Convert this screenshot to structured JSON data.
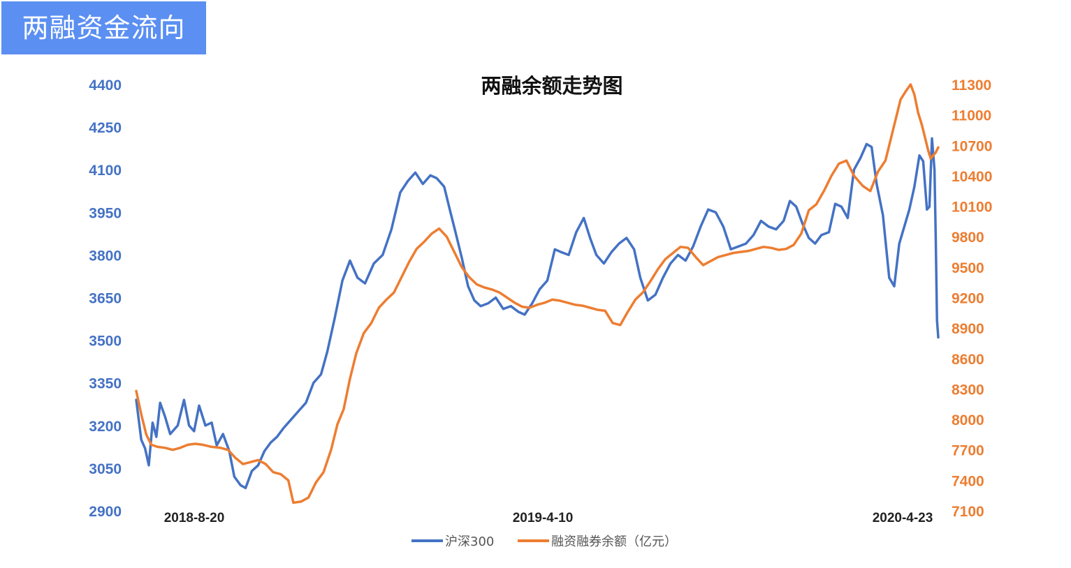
{
  "badge": {
    "text": "两融资金流向"
  },
  "chart_data": {
    "type": "line",
    "title": "两融余额走势图",
    "legend_position": "bottom",
    "grid": false,
    "x_ticks": [
      "2018-8-20",
      "2019-4-10",
      "2020-4-23"
    ],
    "y_left": {
      "ticks": [
        2900,
        3050,
        3200,
        3350,
        3500,
        3650,
        3800,
        3950,
        4100,
        4250,
        4400
      ],
      "range": [
        2900,
        4400
      ]
    },
    "y_right": {
      "ticks": [
        7100,
        7400,
        7700,
        8000,
        8300,
        8600,
        8900,
        9200,
        9500,
        9800,
        10100,
        10400,
        10700,
        11000,
        11300
      ],
      "range": [
        7100,
        11300
      ]
    },
    "x_range": [
      "2018-08-01",
      "2020-04-30"
    ],
    "series": [
      {
        "name": "沪深300",
        "axis": "left",
        "color": "#4472c4",
        "points": [
          [
            "2018-08-01",
            3290
          ],
          [
            "2018-08-05",
            3150
          ],
          [
            "2018-08-08",
            3120
          ],
          [
            "2018-08-11",
            3060
          ],
          [
            "2018-08-14",
            3210
          ],
          [
            "2018-08-17",
            3160
          ],
          [
            "2018-08-20",
            3280
          ],
          [
            "2018-08-24",
            3230
          ],
          [
            "2018-08-28",
            3170
          ],
          [
            "2018-09-03",
            3200
          ],
          [
            "2018-09-08",
            3290
          ],
          [
            "2018-09-12",
            3200
          ],
          [
            "2018-09-16",
            3180
          ],
          [
            "2018-09-20",
            3270
          ],
          [
            "2018-09-25",
            3200
          ],
          [
            "2018-09-30",
            3210
          ],
          [
            "2018-10-04",
            3130
          ],
          [
            "2018-10-09",
            3170
          ],
          [
            "2018-10-14",
            3110
          ],
          [
            "2018-10-18",
            3020
          ],
          [
            "2018-10-23",
            2990
          ],
          [
            "2018-10-27",
            2980
          ],
          [
            "2018-11-01",
            3040
          ],
          [
            "2018-11-06",
            3060
          ],
          [
            "2018-11-11",
            3110
          ],
          [
            "2018-11-16",
            3140
          ],
          [
            "2018-11-21",
            3160
          ],
          [
            "2018-11-26",
            3190
          ],
          [
            "2018-12-02",
            3220
          ],
          [
            "2018-12-08",
            3250
          ],
          [
            "2018-12-14",
            3280
          ],
          [
            "2018-12-20",
            3350
          ],
          [
            "2018-12-26",
            3380
          ],
          [
            "2018-12-31",
            3460
          ],
          [
            "2019-01-06",
            3580
          ],
          [
            "2019-01-12",
            3710
          ],
          [
            "2019-01-18",
            3780
          ],
          [
            "2019-01-24",
            3720
          ],
          [
            "2019-01-30",
            3700
          ],
          [
            "2019-02-06",
            3770
          ],
          [
            "2019-02-13",
            3800
          ],
          [
            "2019-02-20",
            3890
          ],
          [
            "2019-02-27",
            4020
          ],
          [
            "2019-03-05",
            4060
          ],
          [
            "2019-03-11",
            4090
          ],
          [
            "2019-03-17",
            4050
          ],
          [
            "2019-03-23",
            4080
          ],
          [
            "2019-03-28",
            4070
          ],
          [
            "2019-04-03",
            4040
          ],
          [
            "2019-04-08",
            3950
          ],
          [
            "2019-04-12",
            3880
          ],
          [
            "2019-04-17",
            3790
          ],
          [
            "2019-04-22",
            3690
          ],
          [
            "2019-04-27",
            3640
          ],
          [
            "2019-05-02",
            3620
          ],
          [
            "2019-05-08",
            3630
          ],
          [
            "2019-05-14",
            3650
          ],
          [
            "2019-05-20",
            3610
          ],
          [
            "2019-05-26",
            3620
          ],
          [
            "2019-06-01",
            3600
          ],
          [
            "2019-06-06",
            3590
          ],
          [
            "2019-06-12",
            3630
          ],
          [
            "2019-06-18",
            3680
          ],
          [
            "2019-06-24",
            3710
          ],
          [
            "2019-06-30",
            3820
          ],
          [
            "2019-07-05",
            3810
          ],
          [
            "2019-07-11",
            3800
          ],
          [
            "2019-07-17",
            3880
          ],
          [
            "2019-07-23",
            3930
          ],
          [
            "2019-07-28",
            3860
          ],
          [
            "2019-08-02",
            3800
          ],
          [
            "2019-08-08",
            3770
          ],
          [
            "2019-08-14",
            3810
          ],
          [
            "2019-08-20",
            3840
          ],
          [
            "2019-08-26",
            3860
          ],
          [
            "2019-09-01",
            3820
          ],
          [
            "2019-09-06",
            3720
          ],
          [
            "2019-09-12",
            3640
          ],
          [
            "2019-09-18",
            3660
          ],
          [
            "2019-09-24",
            3720
          ],
          [
            "2019-09-30",
            3770
          ],
          [
            "2019-10-06",
            3800
          ],
          [
            "2019-10-12",
            3780
          ],
          [
            "2019-10-18",
            3830
          ],
          [
            "2019-10-24",
            3900
          ],
          [
            "2019-10-30",
            3960
          ],
          [
            "2019-11-05",
            3950
          ],
          [
            "2019-11-11",
            3900
          ],
          [
            "2019-11-17",
            3820
          ],
          [
            "2019-11-23",
            3830
          ],
          [
            "2019-11-29",
            3840
          ],
          [
            "2019-12-05",
            3870
          ],
          [
            "2019-12-11",
            3920
          ],
          [
            "2019-12-17",
            3900
          ],
          [
            "2019-12-23",
            3890
          ],
          [
            "2019-12-29",
            3920
          ],
          [
            "2020-01-03",
            3990
          ],
          [
            "2020-01-08",
            3970
          ],
          [
            "2020-01-13",
            3910
          ],
          [
            "2020-01-18",
            3860
          ],
          [
            "2020-01-23",
            3840
          ],
          [
            "2020-01-28",
            3870
          ],
          [
            "2020-02-03",
            3880
          ],
          [
            "2020-02-08",
            3980
          ],
          [
            "2020-02-13",
            3970
          ],
          [
            "2020-02-18",
            3930
          ],
          [
            "2020-02-23",
            4100
          ],
          [
            "2020-02-28",
            4140
          ],
          [
            "2020-03-04",
            4190
          ],
          [
            "2020-03-08",
            4180
          ],
          [
            "2020-03-12",
            4050
          ],
          [
            "2020-03-17",
            3940
          ],
          [
            "2020-03-22",
            3720
          ],
          [
            "2020-03-26",
            3690
          ],
          [
            "2020-03-30",
            3840
          ],
          [
            "2020-04-03",
            3900
          ],
          [
            "2020-04-07",
            3960
          ],
          [
            "2020-04-11",
            4040
          ],
          [
            "2020-04-15",
            4150
          ],
          [
            "2020-04-18",
            4130
          ],
          [
            "2020-04-21",
            3960
          ],
          [
            "2020-04-23",
            3970
          ],
          [
            "2020-04-25",
            4210
          ],
          [
            "2020-04-27",
            4100
          ],
          [
            "2020-04-28",
            3860
          ],
          [
            "2020-04-29",
            3570
          ],
          [
            "2020-04-30",
            3510
          ]
        ]
      },
      {
        "name": "融资融券余额（亿元）",
        "axis": "right",
        "color": "#ed7d31",
        "points": [
          [
            "2018-08-01",
            8280
          ],
          [
            "2018-08-05",
            8050
          ],
          [
            "2018-08-09",
            7850
          ],
          [
            "2018-08-13",
            7750
          ],
          [
            "2018-08-18",
            7730
          ],
          [
            "2018-08-24",
            7720
          ],
          [
            "2018-08-30",
            7700
          ],
          [
            "2018-09-05",
            7720
          ],
          [
            "2018-09-11",
            7750
          ],
          [
            "2018-09-17",
            7760
          ],
          [
            "2018-09-23",
            7750
          ],
          [
            "2018-09-30",
            7730
          ],
          [
            "2018-10-07",
            7720
          ],
          [
            "2018-10-13",
            7700
          ],
          [
            "2018-10-19",
            7620
          ],
          [
            "2018-10-25",
            7560
          ],
          [
            "2018-10-31",
            7580
          ],
          [
            "2018-11-06",
            7600
          ],
          [
            "2018-11-12",
            7560
          ],
          [
            "2018-11-18",
            7480
          ],
          [
            "2018-11-24",
            7460
          ],
          [
            "2018-11-30",
            7400
          ],
          [
            "2018-12-04",
            7180
          ],
          [
            "2018-12-10",
            7190
          ],
          [
            "2018-12-16",
            7230
          ],
          [
            "2018-12-22",
            7380
          ],
          [
            "2018-12-28",
            7480
          ],
          [
            "2019-01-03",
            7700
          ],
          [
            "2019-01-08",
            7950
          ],
          [
            "2019-01-13",
            8100
          ],
          [
            "2019-01-18",
            8400
          ],
          [
            "2019-01-23",
            8650
          ],
          [
            "2019-01-29",
            8850
          ],
          [
            "2019-02-04",
            8950
          ],
          [
            "2019-02-10",
            9100
          ],
          [
            "2019-02-16",
            9180
          ],
          [
            "2019-02-22",
            9250
          ],
          [
            "2019-02-28",
            9400
          ],
          [
            "2019-03-06",
            9550
          ],
          [
            "2019-03-12",
            9680
          ],
          [
            "2019-03-18",
            9750
          ],
          [
            "2019-03-24",
            9830
          ],
          [
            "2019-03-30",
            9880
          ],
          [
            "2019-04-05",
            9800
          ],
          [
            "2019-04-11",
            9650
          ],
          [
            "2019-04-17",
            9500
          ],
          [
            "2019-04-23",
            9400
          ],
          [
            "2019-04-29",
            9330
          ],
          [
            "2019-05-05",
            9300
          ],
          [
            "2019-05-11",
            9280
          ],
          [
            "2019-05-17",
            9250
          ],
          [
            "2019-05-23",
            9200
          ],
          [
            "2019-05-29",
            9150
          ],
          [
            "2019-06-04",
            9110
          ],
          [
            "2019-06-10",
            9100
          ],
          [
            "2019-06-16",
            9130
          ],
          [
            "2019-06-22",
            9150
          ],
          [
            "2019-06-28",
            9180
          ],
          [
            "2019-07-04",
            9170
          ],
          [
            "2019-07-10",
            9150
          ],
          [
            "2019-07-16",
            9130
          ],
          [
            "2019-07-22",
            9120
          ],
          [
            "2019-07-28",
            9100
          ],
          [
            "2019-08-03",
            9080
          ],
          [
            "2019-08-09",
            9070
          ],
          [
            "2019-08-15",
            8950
          ],
          [
            "2019-08-21",
            8930
          ],
          [
            "2019-08-27",
            9060
          ],
          [
            "2019-09-02",
            9180
          ],
          [
            "2019-09-08",
            9250
          ],
          [
            "2019-09-14",
            9360
          ],
          [
            "2019-09-20",
            9480
          ],
          [
            "2019-09-26",
            9580
          ],
          [
            "2019-10-02",
            9640
          ],
          [
            "2019-10-08",
            9700
          ],
          [
            "2019-10-14",
            9690
          ],
          [
            "2019-10-20",
            9600
          ],
          [
            "2019-10-26",
            9520
          ],
          [
            "2019-11-01",
            9560
          ],
          [
            "2019-11-07",
            9600
          ],
          [
            "2019-11-13",
            9620
          ],
          [
            "2019-11-19",
            9640
          ],
          [
            "2019-11-25",
            9650
          ],
          [
            "2019-12-01",
            9660
          ],
          [
            "2019-12-07",
            9680
          ],
          [
            "2019-12-13",
            9700
          ],
          [
            "2019-12-19",
            9690
          ],
          [
            "2019-12-25",
            9670
          ],
          [
            "2019-12-31",
            9680
          ],
          [
            "2020-01-06",
            9720
          ],
          [
            "2020-01-12",
            9830
          ],
          [
            "2020-01-18",
            10060
          ],
          [
            "2020-01-24",
            10120
          ],
          [
            "2020-01-30",
            10250
          ],
          [
            "2020-02-05",
            10400
          ],
          [
            "2020-02-11",
            10520
          ],
          [
            "2020-02-17",
            10550
          ],
          [
            "2020-02-23",
            10400
          ],
          [
            "2020-03-01",
            10300
          ],
          [
            "2020-03-07",
            10250
          ],
          [
            "2020-03-13",
            10440
          ],
          [
            "2020-03-19",
            10550
          ],
          [
            "2020-03-25",
            10850
          ],
          [
            "2020-03-31",
            11150
          ],
          [
            "2020-04-04",
            11230
          ],
          [
            "2020-04-08",
            11300
          ],
          [
            "2020-04-11",
            11200
          ],
          [
            "2020-04-14",
            11020
          ],
          [
            "2020-04-17",
            10900
          ],
          [
            "2020-04-20",
            10750
          ],
          [
            "2020-04-22",
            10650
          ],
          [
            "2020-04-24",
            10570
          ],
          [
            "2020-04-26",
            10600
          ],
          [
            "2020-04-28",
            10630
          ],
          [
            "2020-04-30",
            10680
          ]
        ]
      }
    ]
  }
}
